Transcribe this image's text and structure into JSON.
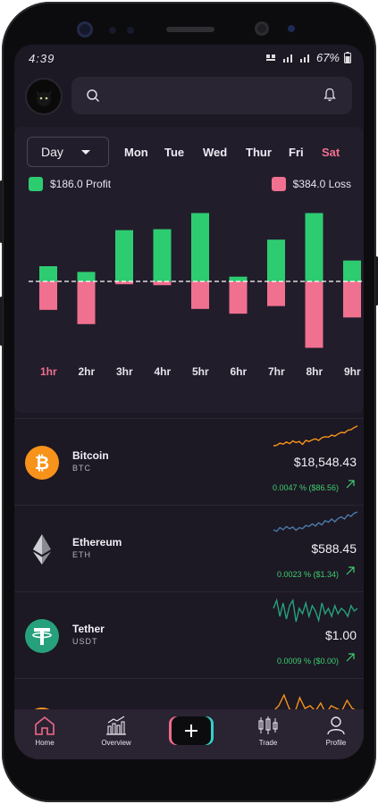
{
  "status": {
    "time": "4:39",
    "battery": "67%"
  },
  "search": {
    "placeholder": ""
  },
  "filter": {
    "selected": "Day",
    "days": [
      "Mon",
      "Tue",
      "Wed",
      "Thur",
      "Fri",
      "Sat"
    ],
    "active_day": "Sat"
  },
  "legend": {
    "profit": "$186.0 Profit",
    "loss": "$384.0 Loss"
  },
  "colors": {
    "profit": "#2ecc71",
    "loss": "#f07090",
    "accent": "#f06a8a",
    "background": "#1c1824",
    "card": "#221d2b"
  },
  "chart_data": {
    "type": "bar",
    "categories": [
      "1hr",
      "2hr",
      "3hr",
      "4hr",
      "5hr",
      "6hr",
      "7hr",
      "8hr",
      "9hr"
    ],
    "series": [
      {
        "values": [
          16,
          10,
          54,
          55,
          72,
          5,
          44,
          72,
          22
        ]
      },
      {
        "values": [
          -30,
          -45,
          -3,
          -4,
          -29,
          -34,
          -26,
          -70,
          -38
        ]
      }
    ],
    "active_category": "1hr",
    "ylim": [
      -80,
      80
    ]
  },
  "coins": [
    {
      "name": "Bitcoin",
      "symbol": "BTC",
      "price": "$18,548.43",
      "change": "0.0047 % ($86.56)",
      "icon": "bitcoin-icon",
      "color": "#f7931a",
      "spark": [
        0.8,
        0.78,
        0.7,
        0.74,
        0.66,
        0.72,
        0.62,
        0.68,
        0.64,
        0.75,
        0.6,
        0.64,
        0.58,
        0.54,
        0.6,
        0.5,
        0.46,
        0.48,
        0.4,
        0.44,
        0.36,
        0.3,
        0.32,
        0.22,
        0.2,
        0.12,
        0.06
      ]
    },
    {
      "name": "Ethereum",
      "symbol": "ETH",
      "price": "$588.45",
      "change": "0.0023 % ($1.34)",
      "icon": "ethereum-icon",
      "color": "#4a7aa8",
      "spark": [
        0.7,
        0.76,
        0.62,
        0.7,
        0.58,
        0.66,
        0.6,
        0.72,
        0.62,
        0.66,
        0.54,
        0.58,
        0.48,
        0.56,
        0.44,
        0.52,
        0.36,
        0.42,
        0.3,
        0.4,
        0.28,
        0.22,
        0.3,
        0.14,
        0.2,
        0.08,
        0.04
      ]
    },
    {
      "name": "Tether",
      "symbol": "USDT",
      "price": "$1.00",
      "change": "0.0009 % ($0.00)",
      "icon": "tether-icon",
      "color": "#26a17b",
      "spark": [
        0.4,
        0.1,
        0.7,
        0.2,
        0.8,
        0.3,
        0.1,
        0.9,
        0.4,
        0.6,
        0.2,
        0.7,
        0.3,
        0.5,
        0.85,
        0.2,
        0.6,
        0.4,
        0.7,
        0.3,
        0.6,
        0.4,
        0.5,
        0.7,
        0.3,
        0.5,
        0.4
      ]
    },
    {
      "name": "",
      "symbol": "",
      "price": "",
      "change": "",
      "icon": "coin-icon",
      "color": "#f7931a",
      "spark": [
        0.8,
        0.6,
        0.2,
        0.7,
        0.9,
        0.3,
        0.7,
        0.6,
        0.8,
        0.5,
        0.9,
        0.6,
        0.7,
        0.8,
        0.4,
        0.7,
        0.8
      ]
    }
  ],
  "nav": [
    {
      "label": "Home",
      "icon": "home-icon",
      "active": true
    },
    {
      "label": "Overview",
      "icon": "overview-icon"
    },
    {
      "label": "",
      "icon": "plus-icon"
    },
    {
      "label": "Trade",
      "icon": "trade-icon"
    },
    {
      "label": "Profile",
      "icon": "profile-icon"
    }
  ]
}
